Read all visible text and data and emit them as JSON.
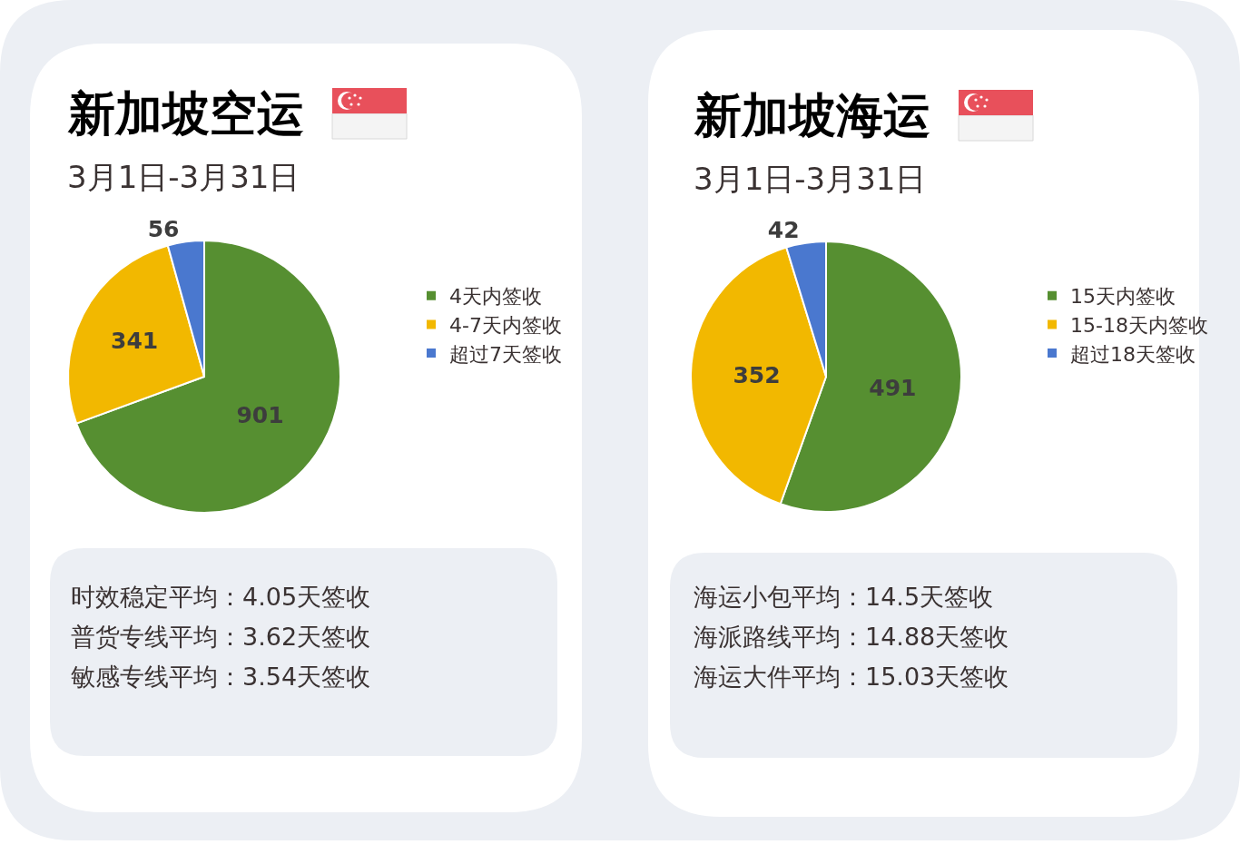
{
  "chart_data": [
    {
      "type": "pie",
      "title": "新加坡空运",
      "subtitle": "3月1日-3月31日",
      "categories": [
        "4天内签收",
        "4-7天内签收",
        "超过7天签收"
      ],
      "values": [
        901,
        341,
        56
      ],
      "colors": [
        "#568f31",
        "#f2b800",
        "#4a78cf"
      ],
      "data_labels": true,
      "legend": "right",
      "annotations": [
        "时效稳定平均：4.05天签收",
        "普货专线平均：3.62天签收",
        "敏感专线平均：3.54天签收"
      ]
    },
    {
      "type": "pie",
      "title": "新加坡海运",
      "subtitle": "3月1日-3月31日",
      "categories": [
        "15天内签收",
        "15-18天内签收",
        "超过18天签收"
      ],
      "values": [
        491,
        352,
        42
      ],
      "colors": [
        "#568f31",
        "#f2b800",
        "#4a78cf"
      ],
      "data_labels": true,
      "legend": "right",
      "annotations": [
        "海运小包平均：14.5天签收",
        "海派路线平均：14.88天签收",
        "海运大件平均：15.03天签收"
      ]
    }
  ]
}
